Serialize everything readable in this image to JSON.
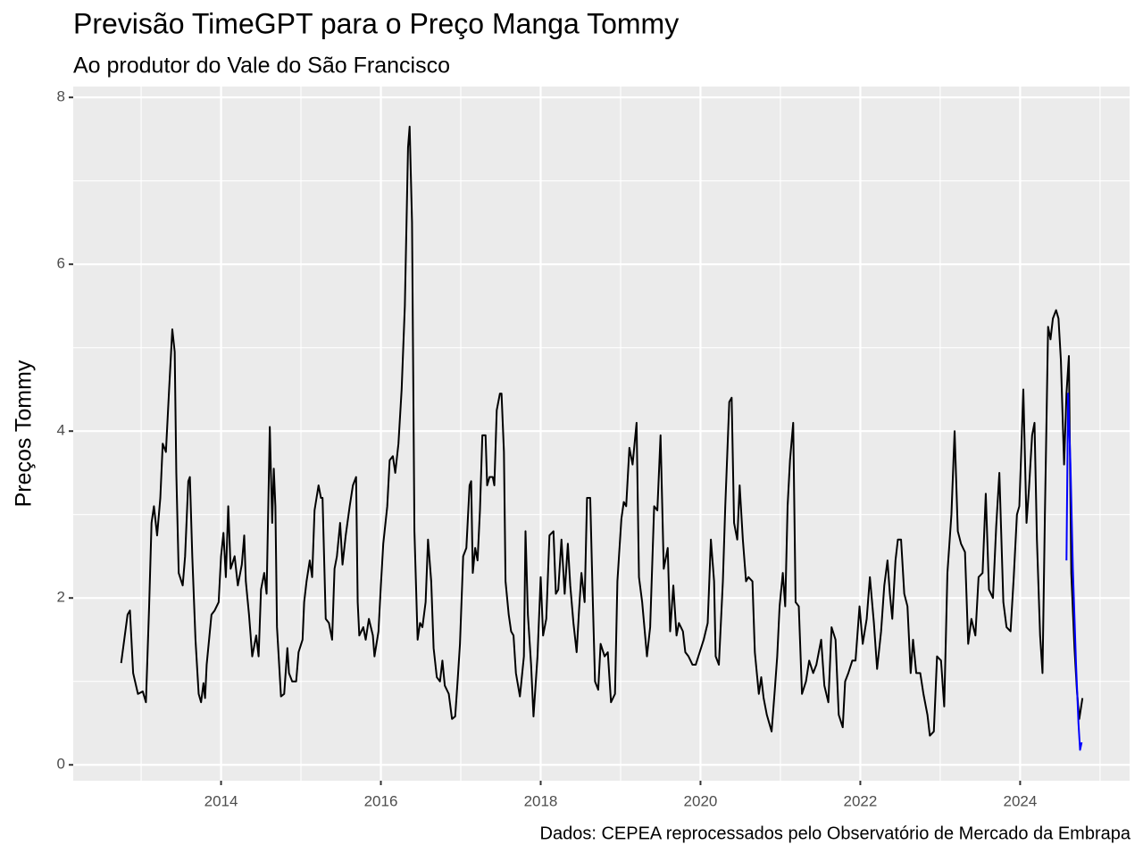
{
  "chart_data": {
    "type": "line",
    "title": "Previsão TimeGPT para o Preço Manga Tommy",
    "subtitle": "Ao produtor do Vale do São Francisco",
    "y_label": "Preços Tommy",
    "caption": "Dados: CEPEA reprocessados pelo Observatório de Mercado da Embrapa",
    "xlim": [
      2012.15,
      2025.37
    ],
    "xticks": [
      2014,
      2016,
      2018,
      2020,
      2022,
      2024
    ],
    "ylim": [
      -0.19,
      8.13
    ],
    "yticks": [
      0,
      2,
      4,
      6,
      8
    ],
    "grid": true,
    "series": [
      {
        "color": "#000000",
        "x": [
          2012.75,
          2012.83,
          2012.86,
          2012.9,
          2012.96,
          2013.02,
          2013.06,
          2013.1,
          2013.13,
          2013.16,
          2013.2,
          2013.24,
          2013.27,
          2013.31,
          2013.35,
          2013.39,
          2013.42,
          2013.44,
          2013.47,
          2013.52,
          2013.55,
          2013.59,
          2013.61,
          2013.64,
          2013.68,
          2013.72,
          2013.75,
          2013.78,
          2013.8,
          2013.82,
          2013.85,
          2013.88,
          2013.92,
          2013.97,
          2014.0,
          2014.03,
          2014.06,
          2014.09,
          2014.12,
          2014.17,
          2014.21,
          2014.26,
          2014.29,
          2014.31,
          2014.35,
          2014.39,
          2014.44,
          2014.47,
          2014.5,
          2014.54,
          2014.57,
          2014.61,
          2014.64,
          2014.66,
          2014.68,
          2014.7,
          2014.75,
          2014.79,
          2014.83,
          2014.85,
          2014.89,
          2014.94,
          2014.97,
          2015.02,
          2015.04,
          2015.07,
          2015.11,
          2015.14,
          2015.17,
          2015.22,
          2015.25,
          2015.27,
          2015.31,
          2015.35,
          2015.39,
          2015.42,
          2015.45,
          2015.49,
          2015.52,
          2015.56,
          2015.61,
          2015.65,
          2015.69,
          2015.71,
          2015.73,
          2015.78,
          2015.81,
          2015.85,
          2015.9,
          2015.92,
          2015.97,
          2016.0,
          2016.03,
          2016.08,
          2016.11,
          2016.15,
          2016.18,
          2016.22,
          2016.26,
          2016.3,
          2016.34,
          2016.36,
          2016.39,
          2016.42,
          2016.46,
          2016.49,
          2016.52,
          2016.56,
          2016.59,
          2016.63,
          2016.66,
          2016.7,
          2016.74,
          2016.77,
          2016.8,
          2016.85,
          2016.89,
          2016.93,
          2016.96,
          2016.99,
          2017.03,
          2017.07,
          2017.11,
          2017.13,
          2017.15,
          2017.18,
          2017.21,
          2017.24,
          2017.27,
          2017.31,
          2017.33,
          2017.36,
          2017.4,
          2017.42,
          2017.45,
          2017.49,
          2017.51,
          2017.54,
          2017.56,
          2017.6,
          2017.63,
          2017.66,
          2017.69,
          2017.74,
          2017.79,
          2017.81,
          2017.84,
          2017.88,
          2017.91,
          2017.96,
          2018.0,
          2018.03,
          2018.07,
          2018.11,
          2018.16,
          2018.19,
          2018.22,
          2018.26,
          2018.3,
          2018.34,
          2018.37,
          2018.41,
          2018.45,
          2018.48,
          2018.51,
          2018.55,
          2018.58,
          2018.62,
          2018.65,
          2018.68,
          2018.72,
          2018.75,
          2018.8,
          2018.84,
          2018.88,
          2018.93,
          2018.96,
          2019.01,
          2019.04,
          2019.07,
          2019.11,
          2019.15,
          2019.2,
          2019.23,
          2019.27,
          2019.33,
          2019.37,
          2019.42,
          2019.46,
          2019.5,
          2019.54,
          2019.59,
          2019.62,
          2019.66,
          2019.7,
          2019.73,
          2019.78,
          2019.81,
          2019.85,
          2019.9,
          2019.94,
          2019.99,
          2020.04,
          2020.09,
          2020.13,
          2020.17,
          2020.19,
          2020.23,
          2020.28,
          2020.31,
          2020.36,
          2020.39,
          2020.42,
          2020.46,
          2020.49,
          2020.53,
          2020.57,
          2020.6,
          2020.65,
          2020.68,
          2020.73,
          2020.76,
          2020.79,
          2020.83,
          2020.86,
          2020.89,
          2020.93,
          2020.96,
          2020.99,
          2021.03,
          2021.06,
          2021.09,
          2021.12,
          2021.16,
          2021.19,
          2021.23,
          2021.27,
          2021.32,
          2021.36,
          2021.41,
          2021.45,
          2021.51,
          2021.55,
          2021.6,
          2021.64,
          2021.69,
          2021.73,
          2021.78,
          2021.81,
          2021.85,
          2021.9,
          2021.94,
          2021.99,
          2022.03,
          2022.08,
          2022.12,
          2022.17,
          2022.21,
          2022.26,
          2022.3,
          2022.34,
          2022.37,
          2022.4,
          2022.44,
          2022.47,
          2022.51,
          2022.55,
          2022.59,
          2022.63,
          2022.66,
          2022.7,
          2022.75,
          2022.79,
          2022.84,
          2022.87,
          2022.92,
          2022.96,
          2023.01,
          2023.05,
          2023.09,
          2023.14,
          2023.18,
          2023.22,
          2023.26,
          2023.31,
          2023.35,
          2023.39,
          2023.44,
          2023.48,
          2023.53,
          2023.57,
          2023.61,
          2023.66,
          2023.7,
          2023.74,
          2023.79,
          2023.83,
          2023.88,
          2023.92,
          2023.96,
          2023.99,
          2024.01,
          2024.04,
          2024.08,
          2024.11,
          2024.15,
          2024.18,
          2024.21,
          2024.25,
          2024.28,
          2024.31,
          2024.35,
          2024.38,
          2024.41,
          2024.45,
          2024.48,
          2024.51,
          2024.55,
          2024.58,
          2024.61,
          2024.64,
          2024.68,
          2024.71,
          2024.74,
          2024.78
        ],
        "values": [
          1.22,
          1.8,
          1.85,
          1.1,
          0.85,
          0.88,
          0.75,
          1.9,
          2.9,
          3.1,
          2.75,
          3.2,
          3.85,
          3.75,
          4.5,
          5.22,
          4.95,
          3.5,
          2.3,
          2.15,
          2.5,
          3.4,
          3.45,
          2.5,
          1.5,
          0.85,
          0.75,
          0.98,
          0.8,
          1.2,
          1.5,
          1.8,
          1.85,
          1.95,
          2.5,
          2.78,
          2.25,
          3.1,
          2.35,
          2.5,
          2.15,
          2.4,
          2.75,
          2.2,
          1.8,
          1.3,
          1.55,
          1.3,
          2.1,
          2.3,
          2.05,
          4.05,
          2.9,
          3.55,
          3.1,
          1.65,
          0.82,
          0.85,
          1.4,
          1.1,
          1.0,
          1.0,
          1.35,
          1.5,
          1.95,
          2.2,
          2.45,
          2.25,
          3.05,
          3.35,
          3.2,
          3.2,
          1.75,
          1.7,
          1.5,
          2.35,
          2.5,
          2.9,
          2.4,
          2.75,
          3.1,
          3.35,
          3.45,
          1.95,
          1.55,
          1.65,
          1.5,
          1.75,
          1.55,
          1.3,
          1.6,
          2.15,
          2.65,
          3.1,
          3.65,
          3.7,
          3.5,
          3.85,
          4.5,
          5.5,
          7.4,
          7.65,
          6.5,
          2.8,
          1.5,
          1.7,
          1.65,
          1.95,
          2.7,
          2.2,
          1.4,
          1.05,
          1.0,
          1.25,
          0.95,
          0.85,
          0.55,
          0.58,
          1.0,
          1.45,
          2.5,
          2.6,
          3.35,
          3.4,
          2.3,
          2.6,
          2.45,
          3.05,
          3.95,
          3.95,
          3.35,
          3.45,
          3.45,
          3.35,
          4.25,
          4.45,
          4.45,
          3.75,
          2.2,
          1.8,
          1.6,
          1.55,
          1.1,
          0.82,
          1.3,
          2.8,
          1.8,
          1.2,
          0.58,
          1.3,
          2.25,
          1.55,
          1.75,
          2.75,
          2.8,
          2.05,
          2.1,
          2.7,
          2.05,
          2.65,
          2.15,
          1.7,
          1.35,
          1.85,
          2.3,
          1.95,
          3.2,
          3.2,
          2.05,
          1.0,
          0.9,
          1.45,
          1.3,
          1.35,
          0.75,
          0.85,
          2.2,
          2.95,
          3.15,
          3.1,
          3.8,
          3.6,
          4.1,
          2.25,
          1.95,
          1.3,
          1.65,
          3.1,
          3.05,
          3.95,
          2.35,
          2.6,
          1.6,
          2.15,
          1.55,
          1.7,
          1.6,
          1.35,
          1.3,
          1.2,
          1.2,
          1.35,
          1.5,
          1.7,
          2.7,
          2.2,
          1.3,
          1.2,
          2.2,
          3.1,
          4.35,
          4.4,
          2.9,
          2.7,
          3.35,
          2.7,
          2.2,
          2.25,
          2.2,
          1.35,
          0.85,
          1.05,
          0.8,
          0.6,
          0.5,
          0.4,
          0.9,
          1.3,
          1.9,
          2.3,
          1.9,
          3.1,
          3.65,
          4.1,
          1.95,
          1.9,
          0.85,
          1.0,
          1.25,
          1.1,
          1.2,
          1.5,
          0.95,
          0.75,
          1.65,
          1.5,
          0.6,
          0.45,
          1.0,
          1.1,
          1.25,
          1.25,
          1.9,
          1.45,
          1.75,
          2.25,
          1.7,
          1.15,
          1.6,
          2.15,
          2.45,
          2.05,
          1.75,
          2.45,
          2.7,
          2.7,
          2.05,
          1.9,
          1.1,
          1.5,
          1.1,
          1.1,
          0.85,
          0.6,
          0.35,
          0.4,
          1.3,
          1.25,
          0.7,
          2.3,
          3.0,
          4.0,
          2.8,
          2.65,
          2.55,
          1.45,
          1.75,
          1.55,
          2.25,
          2.3,
          3.25,
          2.1,
          2.0,
          2.85,
          3.5,
          1.95,
          1.65,
          1.6,
          2.25,
          3.0,
          3.1,
          3.65,
          4.5,
          2.9,
          3.3,
          3.95,
          4.1,
          2.7,
          1.55,
          1.1,
          3.0,
          5.25,
          5.1,
          5.35,
          5.45,
          5.35,
          4.85,
          3.6,
          4.45,
          4.9,
          2.3,
          1.4,
          0.9,
          0.55,
          0.8
        ]
      },
      {
        "color": "#0000ff",
        "x": [
          2024.58,
          2024.6,
          2024.63,
          2024.66,
          2024.7,
          2024.73,
          2024.75,
          2024.77
        ],
        "values": [
          2.45,
          4.45,
          3.6,
          2.35,
          1.2,
          0.5,
          0.18,
          0.27
        ]
      }
    ]
  }
}
